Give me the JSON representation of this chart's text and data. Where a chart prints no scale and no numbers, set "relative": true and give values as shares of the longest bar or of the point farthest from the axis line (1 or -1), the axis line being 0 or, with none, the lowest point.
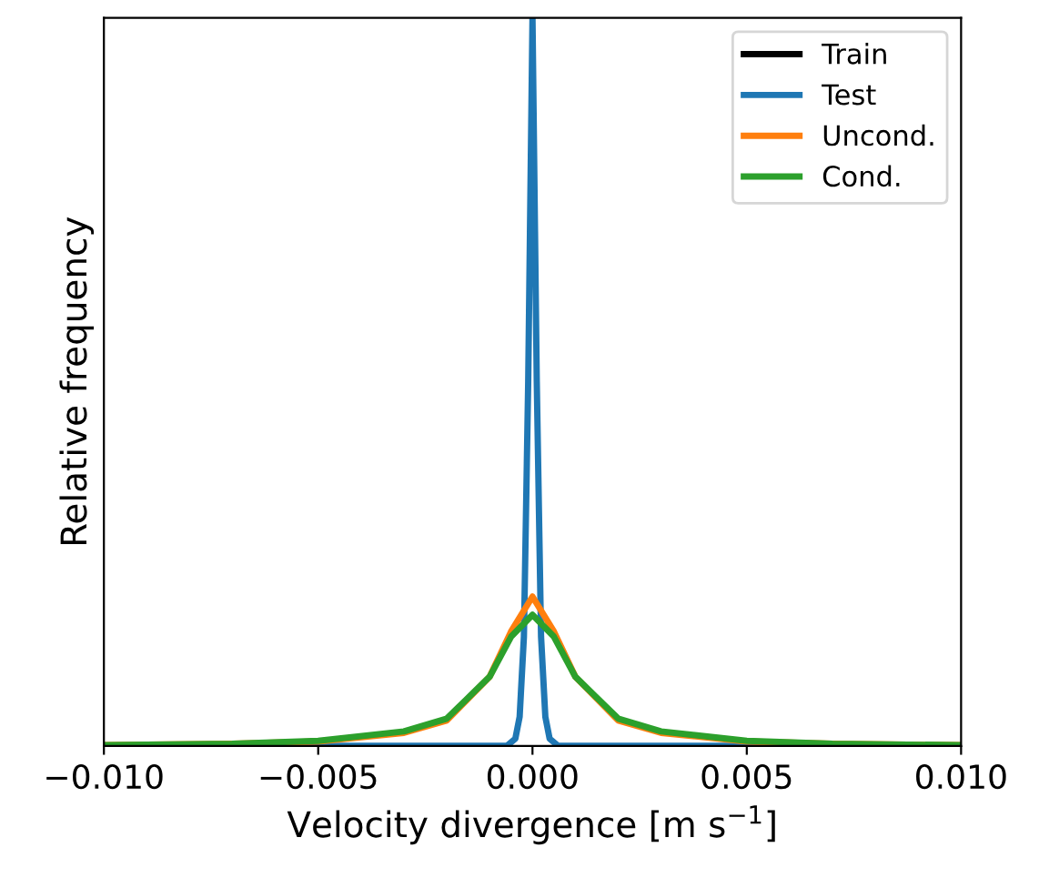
{
  "chart_data": {
    "type": "line",
    "xlabel": "Velocity divergence [m s$^{−1}$]",
    "ylabel": "Relative frequency",
    "relative": true,
    "tick_labels": "x",
    "grid": false,
    "legend": "top right",
    "xlim": [
      -0.01,
      0.01
    ],
    "xticks": [
      {
        "value": -0.01,
        "label": "−0.010"
      },
      {
        "value": -0.005,
        "label": "−0.005"
      },
      {
        "value": 0,
        "label": "0.000"
      },
      {
        "value": 0.005,
        "label": "0.005"
      },
      {
        "value": 0.01,
        "label": "0.010"
      }
    ],
    "series": [
      {
        "name": "Train",
        "color": "#000000"
      },
      {
        "name": "Test",
        "color": "#1f77b4",
        "x": [
          -0.01,
          -0.0006,
          -0.0004,
          -0.0003,
          -0.0002,
          -0.0001,
          0,
          0.0001,
          0.0002,
          0.0003,
          0.0004,
          0.0006,
          0.01
        ],
        "values": [
          0,
          0,
          0.01,
          0.04,
          0.15,
          0.5,
          1,
          0.5,
          0.15,
          0.04,
          0.01,
          0,
          0
        ]
      },
      {
        "name": "Uncond.",
        "color": "#ff7f0e",
        "x": [
          -0.01,
          -0.007,
          -0.005,
          -0.003,
          -0.002,
          -0.001,
          -0.0005,
          0,
          0.0005,
          0.001,
          0.002,
          0.003,
          0.005,
          0.007,
          0.01
        ],
        "values": [
          0.001,
          0.003,
          0.006,
          0.018,
          0.035,
          0.095,
          0.157,
          0.205,
          0.157,
          0.095,
          0.035,
          0.018,
          0.006,
          0.003,
          0.001
        ]
      },
      {
        "name": "Cond.",
        "color": "#2ca02c",
        "x": [
          -0.01,
          -0.007,
          -0.005,
          -0.003,
          -0.002,
          -0.001,
          -0.0005,
          0,
          0.0005,
          0.001,
          0.002,
          0.003,
          0.005,
          0.007,
          0.01
        ],
        "values": [
          0.001,
          0.003,
          0.007,
          0.02,
          0.0375,
          0.095,
          0.15,
          0.18,
          0.15,
          0.095,
          0.0375,
          0.02,
          0.007,
          0.003,
          0.001
        ]
      }
    ]
  }
}
